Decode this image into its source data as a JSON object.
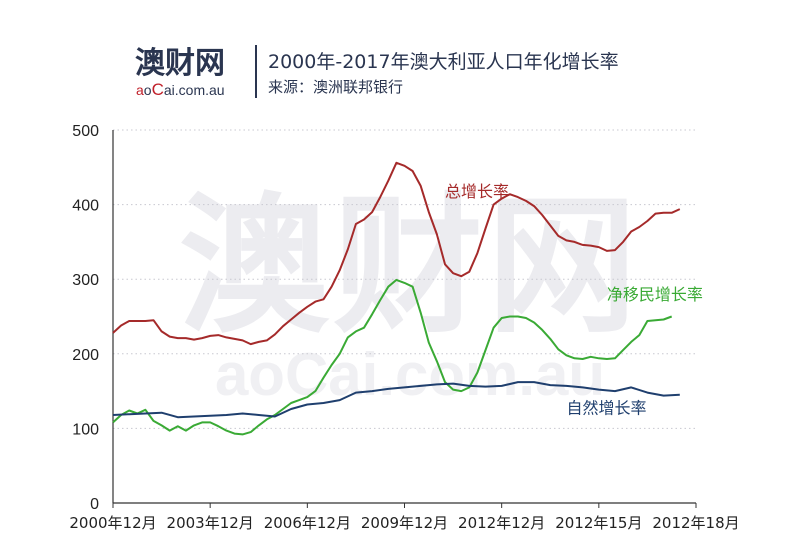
{
  "header": {
    "logo_main": "澳财网",
    "logo_sub_a": "a",
    "logo_sub_o": "o",
    "logo_sub_C": "C",
    "logo_sub_rest": "ai.com.au",
    "title": "2000年-2017年澳大利亚人口年化增长率",
    "source": "来源：澳洲联邦银行"
  },
  "watermark": {
    "main": "澳财网",
    "sub": "aoCai.com.au"
  },
  "colors": {
    "total": "#a52a2a",
    "migration": "#3aaa35",
    "natural": "#1f3f6e",
    "logo_red": "#c0202a",
    "text_dark": "#2a3550"
  },
  "chart_data": {
    "type": "line",
    "title": "2000年-2017年澳大利亚人口年化增长率",
    "ylim": [
      0,
      500
    ],
    "y_ticks": [
      "0",
      "100",
      "200",
      "300",
      "400",
      "500"
    ],
    "x_tick_labels": [
      "2000年12月",
      "2003年12月",
      "2006年12月",
      "2009年12月",
      "2012年12月",
      "2012年15月",
      "2012年18月"
    ],
    "x_range": [
      0,
      72
    ],
    "grid": "horizontal dotted",
    "series": [
      {
        "name": "总增长率",
        "color_key": "total",
        "points": [
          [
            0,
            228
          ],
          [
            1,
            238
          ],
          [
            2,
            244
          ],
          [
            3,
            244
          ],
          [
            4,
            244
          ],
          [
            5,
            245
          ],
          [
            6,
            230
          ],
          [
            7,
            223
          ],
          [
            8,
            221
          ],
          [
            9,
            221
          ],
          [
            10,
            219
          ],
          [
            11,
            221
          ],
          [
            12,
            224
          ],
          [
            13,
            225
          ],
          [
            14,
            222
          ],
          [
            15,
            220
          ],
          [
            16,
            218
          ],
          [
            17,
            213
          ],
          [
            18,
            216
          ],
          [
            19,
            218
          ],
          [
            20,
            226
          ],
          [
            21,
            237
          ],
          [
            22,
            246
          ],
          [
            23,
            255
          ],
          [
            24,
            263
          ],
          [
            25,
            270
          ],
          [
            26,
            273
          ],
          [
            27,
            290
          ],
          [
            28,
            312
          ],
          [
            29,
            340
          ],
          [
            30,
            374
          ],
          [
            31,
            380
          ],
          [
            32,
            390
          ],
          [
            33,
            410
          ],
          [
            34,
            432
          ],
          [
            35,
            456
          ],
          [
            36,
            452
          ],
          [
            37,
            445
          ],
          [
            38,
            425
          ],
          [
            39,
            390
          ],
          [
            40,
            360
          ],
          [
            41,
            320
          ],
          [
            42,
            308
          ],
          [
            43,
            304
          ],
          [
            44,
            310
          ],
          [
            45,
            335
          ],
          [
            46,
            368
          ],
          [
            47,
            400
          ],
          [
            48,
            408
          ],
          [
            49,
            414
          ],
          [
            50,
            410
          ],
          [
            51,
            405
          ],
          [
            52,
            398
          ],
          [
            53,
            386
          ],
          [
            54,
            372
          ],
          [
            55,
            358
          ],
          [
            56,
            352
          ],
          [
            57,
            350
          ],
          [
            58,
            346
          ],
          [
            59,
            345
          ],
          [
            60,
            343
          ],
          [
            61,
            338
          ],
          [
            62,
            339
          ],
          [
            63,
            350
          ],
          [
            64,
            364
          ],
          [
            65,
            370
          ],
          [
            66,
            378
          ],
          [
            67,
            388
          ],
          [
            68,
            389
          ],
          [
            69,
            389
          ],
          [
            70,
            394
          ]
        ]
      },
      {
        "name": "净移民增长率",
        "color_key": "migration",
        "points": [
          [
            0,
            108
          ],
          [
            1,
            118
          ],
          [
            2,
            124
          ],
          [
            3,
            120
          ],
          [
            4,
            125
          ],
          [
            5,
            110
          ],
          [
            6,
            104
          ],
          [
            7,
            97
          ],
          [
            8,
            103
          ],
          [
            9,
            97
          ],
          [
            10,
            104
          ],
          [
            11,
            108
          ],
          [
            12,
            108
          ],
          [
            13,
            103
          ],
          [
            14,
            97
          ],
          [
            15,
            93
          ],
          [
            16,
            92
          ],
          [
            17,
            95
          ],
          [
            18,
            104
          ],
          [
            19,
            112
          ],
          [
            20,
            118
          ],
          [
            21,
            126
          ],
          [
            22,
            134
          ],
          [
            23,
            138
          ],
          [
            24,
            142
          ],
          [
            25,
            150
          ],
          [
            26,
            168
          ],
          [
            27,
            185
          ],
          [
            28,
            200
          ],
          [
            29,
            222
          ],
          [
            30,
            230
          ],
          [
            31,
            235
          ],
          [
            32,
            253
          ],
          [
            33,
            272
          ],
          [
            34,
            290
          ],
          [
            35,
            299
          ],
          [
            36,
            295
          ],
          [
            37,
            290
          ],
          [
            38,
            255
          ],
          [
            39,
            215
          ],
          [
            40,
            190
          ],
          [
            41,
            162
          ],
          [
            42,
            152
          ],
          [
            43,
            150
          ],
          [
            44,
            155
          ],
          [
            45,
            175
          ],
          [
            46,
            205
          ],
          [
            47,
            235
          ],
          [
            48,
            248
          ],
          [
            49,
            250
          ],
          [
            50,
            250
          ],
          [
            51,
            248
          ],
          [
            52,
            242
          ],
          [
            53,
            232
          ],
          [
            54,
            220
          ],
          [
            55,
            206
          ],
          [
            56,
            198
          ],
          [
            57,
            194
          ],
          [
            58,
            193
          ],
          [
            59,
            196
          ],
          [
            60,
            194
          ],
          [
            61,
            193
          ],
          [
            62,
            194
          ],
          [
            63,
            205
          ],
          [
            64,
            216
          ],
          [
            65,
            225
          ],
          [
            66,
            244
          ],
          [
            67,
            245
          ],
          [
            68,
            246
          ],
          [
            69,
            250
          ]
        ]
      },
      {
        "name": "自然增长率",
        "color_key": "natural",
        "points": [
          [
            0,
            118
          ],
          [
            2,
            119
          ],
          [
            4,
            120
          ],
          [
            6,
            121
          ],
          [
            8,
            115
          ],
          [
            10,
            116
          ],
          [
            12,
            117
          ],
          [
            14,
            118
          ],
          [
            16,
            120
          ],
          [
            18,
            118
          ],
          [
            20,
            116
          ],
          [
            22,
            126
          ],
          [
            24,
            132
          ],
          [
            26,
            134
          ],
          [
            28,
            138
          ],
          [
            30,
            148
          ],
          [
            32,
            150
          ],
          [
            34,
            153
          ],
          [
            36,
            155
          ],
          [
            38,
            157
          ],
          [
            40,
            159
          ],
          [
            42,
            160
          ],
          [
            44,
            157
          ],
          [
            46,
            156
          ],
          [
            48,
            157
          ],
          [
            50,
            162
          ],
          [
            52,
            162
          ],
          [
            54,
            158
          ],
          [
            56,
            157
          ],
          [
            58,
            155
          ],
          [
            60,
            152
          ],
          [
            62,
            150
          ],
          [
            64,
            155
          ],
          [
            66,
            148
          ],
          [
            68,
            144
          ],
          [
            70,
            145
          ]
        ]
      }
    ],
    "labels": [
      {
        "text": "总增长率",
        "series": 0,
        "at": [
          41,
          410
        ]
      },
      {
        "text": "净移民增长率",
        "series": 1,
        "at": [
          61,
          272
        ]
      },
      {
        "text": "自然增长率",
        "series": 2,
        "at": [
          56,
          120
        ]
      }
    ]
  }
}
